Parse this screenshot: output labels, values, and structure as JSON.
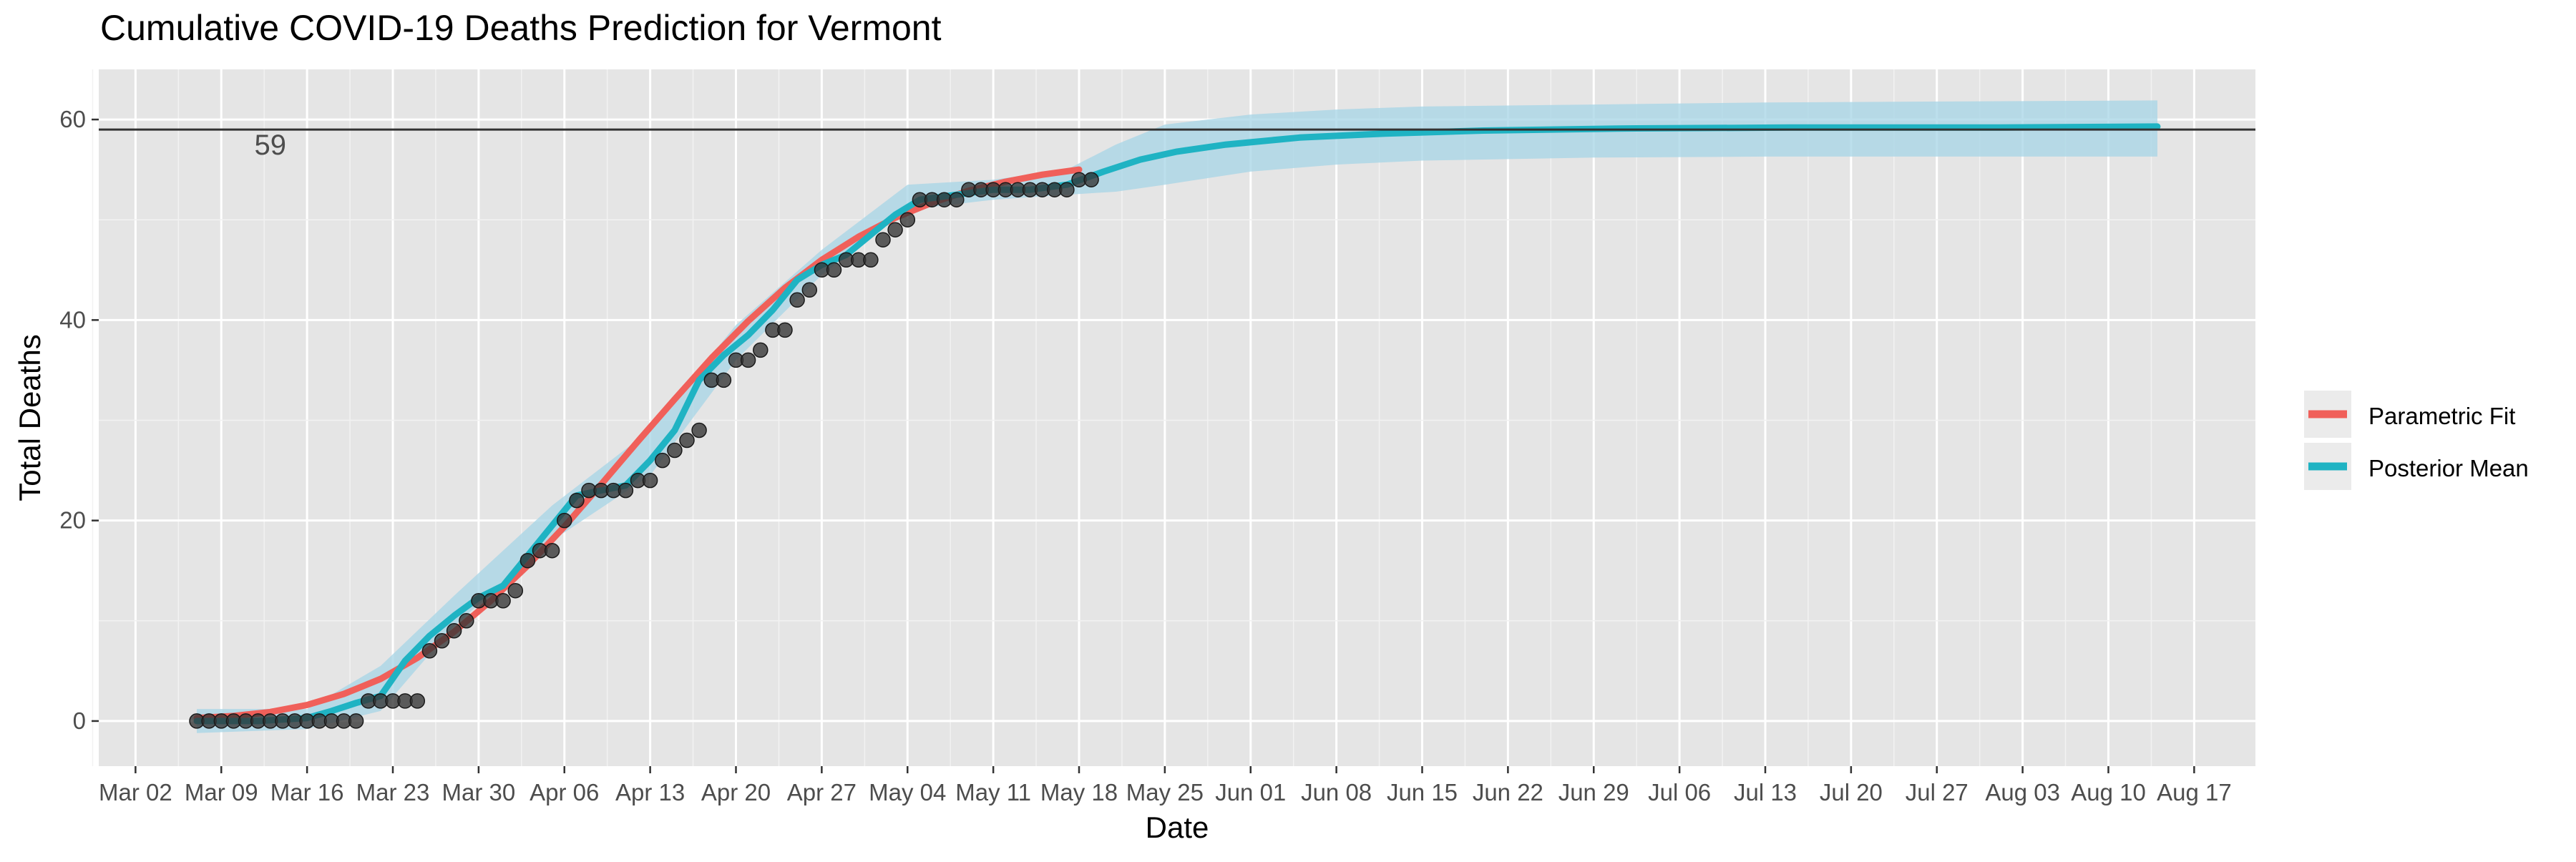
{
  "chart_data": {
    "type": "line",
    "title": "Cumulative COVID-19 Deaths Prediction for Vermont",
    "xlabel": "Date",
    "ylabel": "Total Deaths",
    "x_axis_type": "date",
    "xlim": [
      "2020-02-28",
      "2020-08-22"
    ],
    "ylim": [
      -4.5,
      65
    ],
    "x_tick_dates": [
      "2020-03-02",
      "2020-03-09",
      "2020-03-16",
      "2020-03-23",
      "2020-03-30",
      "2020-04-06",
      "2020-04-13",
      "2020-04-20",
      "2020-04-27",
      "2020-05-04",
      "2020-05-11",
      "2020-05-18",
      "2020-05-25",
      "2020-06-01",
      "2020-06-08",
      "2020-06-15",
      "2020-06-22",
      "2020-06-29",
      "2020-07-06",
      "2020-07-13",
      "2020-07-20",
      "2020-07-27",
      "2020-08-03",
      "2020-08-10",
      "2020-08-17"
    ],
    "x_tick_labels": [
      "Mar 02",
      "Mar 09",
      "Mar 16",
      "Mar 23",
      "Mar 30",
      "Apr 06",
      "Apr 13",
      "Apr 20",
      "Apr 27",
      "May 04",
      "May 11",
      "May 18",
      "May 25",
      "Jun 01",
      "Jun 08",
      "Jun 15",
      "Jun 22",
      "Jun 29",
      "Jul 06",
      "Jul 13",
      "Jul 20",
      "Jul 27",
      "Aug 03",
      "Aug 10",
      "Aug 17"
    ],
    "y_ticks": [
      0,
      20,
      40,
      60
    ],
    "y_tick_labels": [
      "0",
      "20",
      "40",
      "60"
    ],
    "grid": true,
    "background_color": "#e5e5e5",
    "hline": {
      "value": 59,
      "label": "59",
      "label_date": "2020-03-13",
      "label_value": 57.5,
      "color": "#333333"
    },
    "legend": {
      "position": "right",
      "entries": [
        {
          "name": "Parametric Fit",
          "color": "#f0605a"
        },
        {
          "name": "Posterior Mean",
          "color": "#1fb3c3"
        }
      ]
    },
    "series": [
      {
        "name": "Parametric Fit",
        "color": "#f0605a",
        "kind": "line",
        "x": [
          "2020-03-07",
          "2020-03-10",
          "2020-03-13",
          "2020-03-16",
          "2020-03-19",
          "2020-03-22",
          "2020-03-25",
          "2020-03-28",
          "2020-03-31",
          "2020-04-03",
          "2020-04-06",
          "2020-04-09",
          "2020-04-12",
          "2020-04-15",
          "2020-04-18",
          "2020-04-21",
          "2020-04-24",
          "2020-04-27",
          "2020-04-30",
          "2020-05-03",
          "2020-05-06",
          "2020-05-09",
          "2020-05-12",
          "2020-05-15",
          "2020-05-18"
        ],
        "y": [
          0.3,
          0.5,
          0.9,
          1.6,
          2.7,
          4.2,
          6.3,
          8.9,
          12.0,
          15.5,
          19.4,
          23.6,
          27.9,
          32.1,
          36.2,
          39.9,
          43.2,
          46.0,
          48.3,
          50.2,
          51.7,
          52.9,
          53.8,
          54.5,
          55.0
        ]
      },
      {
        "name": "Posterior Mean",
        "color": "#1fb3c3",
        "kind": "line",
        "x": [
          "2020-03-07",
          "2020-03-12",
          "2020-03-16",
          "2020-03-18",
          "2020-03-20",
          "2020-03-22",
          "2020-03-24",
          "2020-03-26",
          "2020-03-28",
          "2020-03-30",
          "2020-04-01",
          "2020-04-03",
          "2020-04-05",
          "2020-04-07",
          "2020-04-09",
          "2020-04-11",
          "2020-04-13",
          "2020-04-15",
          "2020-04-17",
          "2020-04-19",
          "2020-04-21",
          "2020-04-23",
          "2020-04-25",
          "2020-04-27",
          "2020-04-29",
          "2020-05-01",
          "2020-05-03",
          "2020-05-05",
          "2020-05-08",
          "2020-05-11",
          "2020-05-14",
          "2020-05-17",
          "2020-05-20",
          "2020-05-23",
          "2020-05-26",
          "2020-05-30",
          "2020-06-05",
          "2020-06-12",
          "2020-06-20",
          "2020-07-01",
          "2020-07-15",
          "2020-08-01",
          "2020-08-14"
        ],
        "y": [
          0,
          0,
          0.3,
          1.0,
          1.8,
          2.5,
          6.0,
          8.5,
          10.5,
          12.3,
          13.5,
          16.5,
          19.5,
          22.5,
          23.0,
          23.5,
          26.0,
          29.0,
          34.0,
          36.5,
          38.5,
          41.0,
          44.0,
          45.5,
          46.5,
          48.5,
          50.5,
          52.0,
          52.5,
          53.0,
          53.0,
          53.5,
          54.8,
          56.0,
          56.8,
          57.5,
          58.2,
          58.6,
          58.9,
          59.1,
          59.2,
          59.2,
          59.3
        ]
      },
      {
        "name": "Posterior 95% band",
        "color": "#a6d4e6",
        "kind": "band",
        "x": [
          "2020-03-07",
          "2020-03-16",
          "2020-03-22",
          "2020-03-28",
          "2020-04-05",
          "2020-04-13",
          "2020-04-20",
          "2020-04-27",
          "2020-05-04",
          "2020-05-11",
          "2020-05-17",
          "2020-05-21",
          "2020-05-25",
          "2020-06-01",
          "2020-06-08",
          "2020-06-15",
          "2020-06-29",
          "2020-07-13",
          "2020-08-14"
        ],
        "lower": [
          -1.2,
          -0.8,
          1.0,
          9.5,
          18.0,
          24.5,
          36.0,
          44.5,
          51.0,
          52.0,
          52.5,
          52.8,
          53.5,
          54.8,
          55.5,
          55.9,
          56.2,
          56.3,
          56.3
        ],
        "upper": [
          1.2,
          1.2,
          5.5,
          12.5,
          21.5,
          29.0,
          39.5,
          47.0,
          53.5,
          54.0,
          55.0,
          57.5,
          59.5,
          60.5,
          61.0,
          61.3,
          61.5,
          61.7,
          61.9
        ]
      },
      {
        "name": "Observed",
        "color": "#333333",
        "kind": "points",
        "x": [
          "2020-03-07",
          "2020-03-08",
          "2020-03-09",
          "2020-03-10",
          "2020-03-11",
          "2020-03-12",
          "2020-03-13",
          "2020-03-14",
          "2020-03-15",
          "2020-03-16",
          "2020-03-17",
          "2020-03-18",
          "2020-03-19",
          "2020-03-20",
          "2020-03-21",
          "2020-03-22",
          "2020-03-23",
          "2020-03-24",
          "2020-03-25",
          "2020-03-26",
          "2020-03-27",
          "2020-03-28",
          "2020-03-29",
          "2020-03-30",
          "2020-03-31",
          "2020-04-01",
          "2020-04-02",
          "2020-04-03",
          "2020-04-04",
          "2020-04-05",
          "2020-04-06",
          "2020-04-07",
          "2020-04-08",
          "2020-04-09",
          "2020-04-10",
          "2020-04-11",
          "2020-04-12",
          "2020-04-13",
          "2020-04-14",
          "2020-04-15",
          "2020-04-16",
          "2020-04-17",
          "2020-04-18",
          "2020-04-19",
          "2020-04-20",
          "2020-04-21",
          "2020-04-22",
          "2020-04-23",
          "2020-04-24",
          "2020-04-25",
          "2020-04-26",
          "2020-04-27",
          "2020-04-28",
          "2020-04-29",
          "2020-04-30",
          "2020-05-01",
          "2020-05-02",
          "2020-05-03",
          "2020-05-04",
          "2020-05-05",
          "2020-05-06",
          "2020-05-07",
          "2020-05-08",
          "2020-05-09",
          "2020-05-10",
          "2020-05-11",
          "2020-05-12",
          "2020-05-13",
          "2020-05-14",
          "2020-05-15",
          "2020-05-16",
          "2020-05-17",
          "2020-05-18",
          "2020-05-19"
        ],
        "y": [
          0,
          0,
          0,
          0,
          0,
          0,
          0,
          0,
          0,
          0,
          0,
          0,
          0,
          0,
          2,
          2,
          2,
          2,
          2,
          7,
          8,
          9,
          10,
          12,
          12,
          12,
          13,
          16,
          17,
          17,
          20,
          22,
          23,
          23,
          23,
          23,
          24,
          24,
          26,
          27,
          28,
          29,
          34,
          34,
          36,
          36,
          37,
          39,
          39,
          42,
          43,
          45,
          45,
          46,
          46,
          46,
          48,
          49,
          50,
          52,
          52,
          52,
          52,
          53,
          53,
          53,
          53,
          53,
          53,
          53,
          53,
          53,
          54,
          54
        ]
      }
    ]
  }
}
